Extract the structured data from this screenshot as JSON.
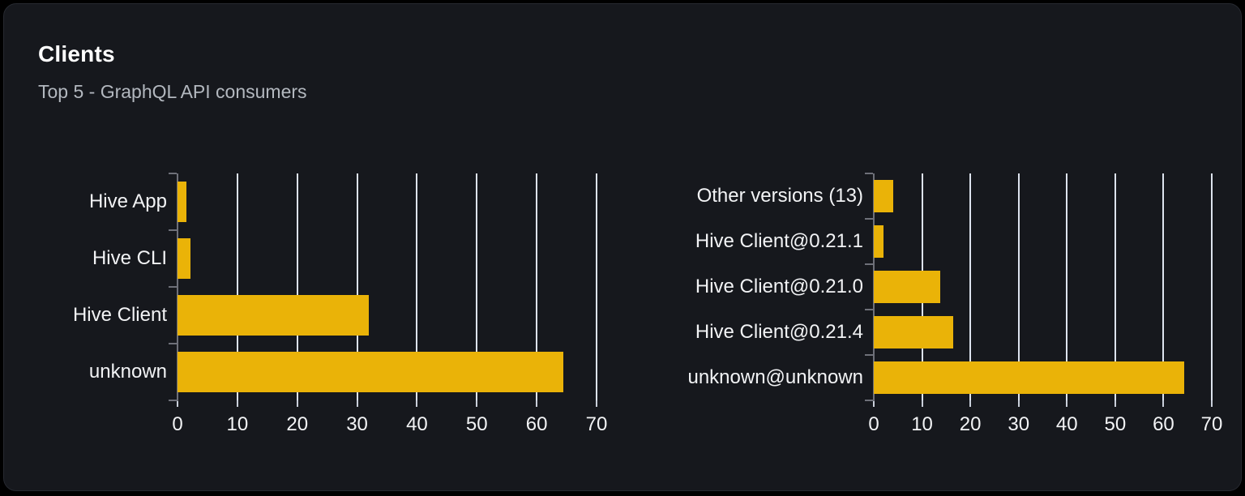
{
  "card": {
    "title": "Clients",
    "subtitle": "Top 5 - GraphQL API consumers"
  },
  "colors": {
    "bar": "#eab308",
    "card_background": "#16181d",
    "page_background": "#000000",
    "gridline": "#dde3ee",
    "axis": "#6e7079",
    "label_text": "#f2f3f5",
    "subtitle_text": "#b3b8bf"
  },
  "chart_data": [
    {
      "type": "bar",
      "orientation": "horizontal",
      "name": "clients-by-name",
      "categories": [
        "Hive App",
        "Hive CLI",
        "Hive Client",
        "unknown"
      ],
      "values": [
        1.5,
        2.2,
        32,
        64.4
      ],
      "xlim": [
        0,
        70
      ],
      "xticks": [
        0,
        10,
        20,
        30,
        40,
        50,
        60,
        70
      ],
      "grid": true,
      "legend": false,
      "bar_color": "#eab308"
    },
    {
      "type": "bar",
      "orientation": "horizontal",
      "name": "clients-by-version",
      "categories": [
        "Other versions (13)",
        "Hive Client@0.21.1",
        "Hive Client@0.21.0",
        "Hive Client@0.21.4",
        "unknown@unknown"
      ],
      "values": [
        4,
        2,
        13.8,
        16.5,
        64.3
      ],
      "xlim": [
        0,
        70
      ],
      "xticks": [
        0,
        10,
        20,
        30,
        40,
        50,
        60,
        70
      ],
      "grid": true,
      "legend": false,
      "bar_color": "#eab308"
    }
  ]
}
